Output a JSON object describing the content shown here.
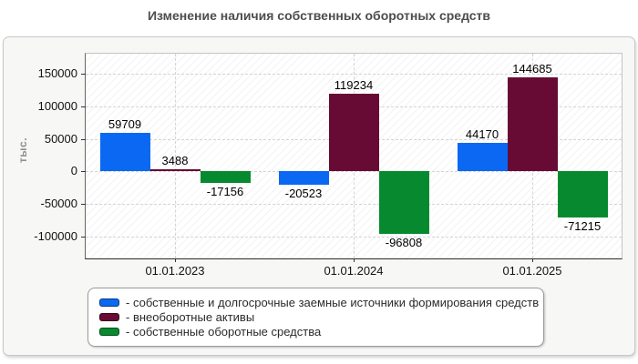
{
  "title": "Изменение наличия собственных оборотных средств",
  "chart_data": {
    "type": "bar",
    "categories": [
      "01.01.2023",
      "01.01.2024",
      "01.01.2025"
    ],
    "series": [
      {
        "name": "собственные и долгосрочные заемные источники формирования средств",
        "color": "#0a68f2",
        "values": [
          59709,
          -20523,
          44170
        ]
      },
      {
        "name": "внеоборотные активы",
        "color": "#670b34",
        "values": [
          3488,
          119234,
          144685
        ]
      },
      {
        "name": "собственные оборотные средства",
        "color": "#078a2f",
        "values": [
          -17156,
          -96808,
          -71215
        ]
      }
    ],
    "ylabel": "тыс.",
    "xlabel": "",
    "y_ticks": [
      150000,
      100000,
      50000,
      0,
      -50000,
      -100000
    ],
    "ylim": [
      -134000,
      181000
    ],
    "grid": true,
    "legend_position": "bottom",
    "legend_prefix": "- "
  }
}
